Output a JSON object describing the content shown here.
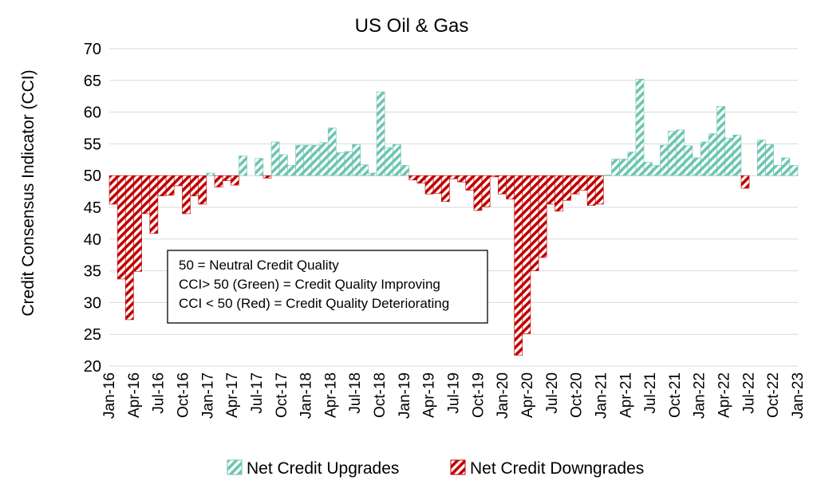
{
  "chart_data": {
    "type": "bar",
    "title": "US Oil & Gas",
    "xlabel": "",
    "ylabel": "Credit Consensus Indicator (CCI)",
    "ylim": [
      20,
      70
    ],
    "yticks": [
      20,
      25,
      30,
      35,
      40,
      45,
      50,
      55,
      60,
      65,
      70
    ],
    "baseline": 50,
    "grid": true,
    "legend_position": "bottom",
    "x_tick_labels": [
      "Jan-16",
      "Apr-16",
      "Jul-16",
      "Oct-16",
      "Jan-17",
      "Apr-17",
      "Jul-17",
      "Oct-17",
      "Jan-18",
      "Apr-18",
      "Jul-18",
      "Oct-18",
      "Jan-19",
      "Apr-19",
      "Jul-19",
      "Oct-19",
      "Jan-20",
      "Apr-20",
      "Jul-20",
      "Oct-20",
      "Jan-21",
      "Apr-21",
      "Jul-21",
      "Oct-21",
      "Jan-22",
      "Apr-22",
      "Jul-22",
      "Oct-22",
      "Jan-23"
    ],
    "series": [
      {
        "name": "Net Credit Upgrades",
        "color": "#6cc5b0",
        "pattern": "hatch"
      },
      {
        "name": "Net Credit Downgrades",
        "color": "#c00000",
        "pattern": "hatch"
      }
    ],
    "values": [
      45.5,
      33.7,
      27.3,
      34.9,
      44.0,
      40.9,
      46.8,
      46.9,
      48.4,
      44.0,
      46.8,
      45.5,
      50.4,
      48.2,
      49.2,
      48.5,
      53.1,
      null,
      52.7,
      49.6,
      55.3,
      53.3,
      51.6,
      54.8,
      54.8,
      54.8,
      55.2,
      57.5,
      53.6,
      53.8,
      54.9,
      51.7,
      50.4,
      63.2,
      54.4,
      54.9,
      51.6,
      49.3,
      48.8,
      47.1,
      47.2,
      45.9,
      49.5,
      49.0,
      47.7,
      44.5,
      45.1,
      49.8,
      47.1,
      46.3,
      21.7,
      25.1,
      35.0,
      37.1,
      45.5,
      44.4,
      46.1,
      47.1,
      47.7,
      45.3,
      45.5,
      50.1,
      52.6,
      52.6,
      53.7,
      65.2,
      52.1,
      51.6,
      54.8,
      57.0,
      57.2,
      54.7,
      52.8,
      55.3,
      56.6,
      60.9,
      55.9,
      56.4,
      48.0,
      null,
      55.6,
      54.9,
      51.6,
      52.8,
      51.6
    ],
    "annotation_lines": [
      "50 = Neutral Credit Quality",
      "CCI> 50 (Green) = Credit Quality Improving",
      "CCI < 50 (Red) = Credit Quality Deteriorating"
    ]
  }
}
